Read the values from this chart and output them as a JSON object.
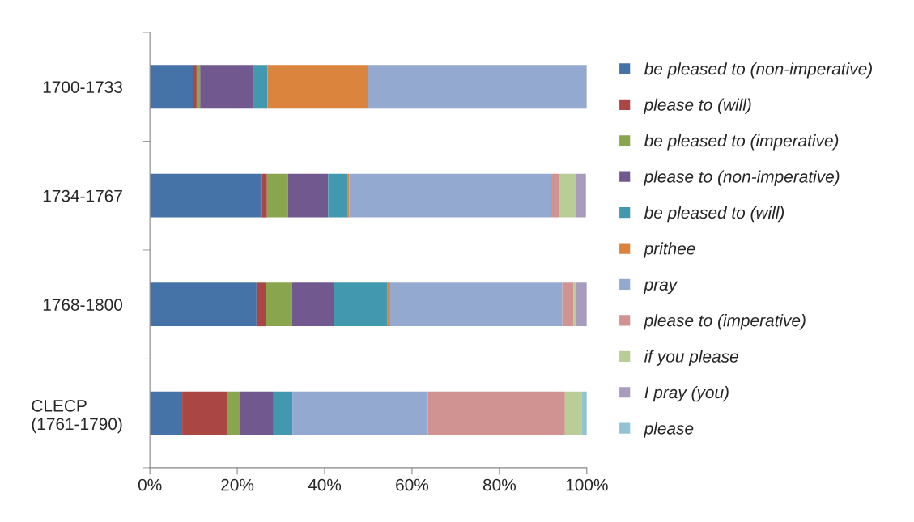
{
  "chart_data": {
    "type": "bar",
    "orientation": "horizontal",
    "stacked": true,
    "categories": [
      "1700-1733",
      "1734-1767",
      "1768-1800",
      "CLECP (1761-1790)"
    ],
    "series": [
      {
        "name": "be pleased to (non-imperative)",
        "color": "#4572a7",
        "values": [
          9.9,
          25.6,
          24.4,
          7.4
        ]
      },
      {
        "name": "please to (will)",
        "color": "#aa4643",
        "values": [
          0.8,
          1.2,
          2.2,
          10.3
        ]
      },
      {
        "name": "be pleased to (imperative)",
        "color": "#89a54e",
        "values": [
          0.8,
          4.8,
          5.9,
          3.0
        ]
      },
      {
        "name": "please to (non-imperative)",
        "color": "#71588f",
        "values": [
          12.2,
          9.2,
          9.7,
          7.6
        ]
      },
      {
        "name": "be pleased to (will)",
        "color": "#4198af",
        "values": [
          3.2,
          4.4,
          12.2,
          4.3
        ]
      },
      {
        "name": "prithee",
        "color": "#db843d",
        "values": [
          23.1,
          0.4,
          0.6,
          0
        ]
      },
      {
        "name": "pray",
        "color": "#93a9cf",
        "values": [
          50.0,
          46.1,
          39.4,
          31.0
        ]
      },
      {
        "name": "please to (imperative)",
        "color": "#d19392",
        "values": [
          0,
          1.9,
          2.5,
          31.4
        ]
      },
      {
        "name": "if you please",
        "color": "#b9cd96",
        "values": [
          0,
          4.0,
          0.6,
          3.9
        ]
      },
      {
        "name": "I pray (you)",
        "color": "#a99bbd",
        "values": [
          0,
          2.2,
          2.5,
          0
        ]
      },
      {
        "name": "please",
        "color": "#92c3d5",
        "values": [
          0,
          null,
          0,
          1.1
        ]
      }
    ],
    "xlim": [
      0,
      100
    ],
    "xticks": [
      {
        "value": 0,
        "label": "0%"
      },
      {
        "value": 20,
        "label": "20%"
      },
      {
        "value": 40,
        "label": "40%"
      },
      {
        "value": 60,
        "label": "60%"
      },
      {
        "value": 80,
        "label": "80%"
      },
      {
        "value": 100,
        "label": "100%"
      }
    ],
    "grid": false,
    "legend": "right"
  }
}
